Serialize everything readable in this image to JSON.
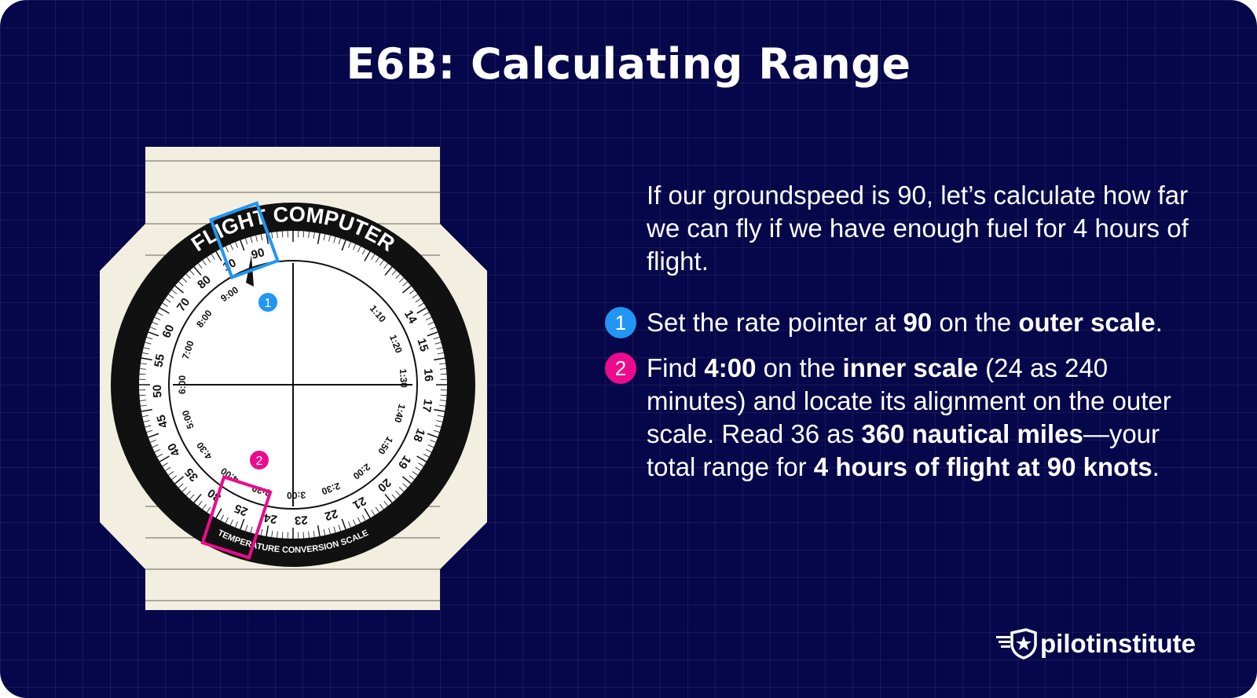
{
  "title": "E6B: Calculating Range",
  "intro": "If our groundspeed is 90, let’s calculate how far we can fly if we have enough fuel for 4 hours of flight.",
  "steps": [
    {
      "number": "1",
      "color": "#2196f3",
      "parts": [
        "Set the rate pointer at ",
        "90",
        " on the ",
        "outer scale",
        "."
      ]
    },
    {
      "number": "2",
      "color": "#ec0b8c",
      "parts": [
        "Find ",
        "4:00",
        " on the ",
        "inner scale",
        " (24 as 240 minutes) and locate its alignment on the outer scale. Read 36 as ",
        "360 nautical miles",
        "—your total range for ",
        "4 hours of flight at 90 knots",
        "."
      ]
    }
  ],
  "dial": {
    "top_label": "FLIGHT COMPUTER",
    "bottom_label": "TEMPERATURE CONVERSION SCALE",
    "outer_numbers": [
      "90",
      "10",
      "80",
      "70",
      "60",
      "55",
      "50",
      "45",
      "40",
      "35",
      "30",
      "25",
      "24",
      "23",
      "22",
      "21",
      "20",
      "19",
      "18",
      "17",
      "16",
      "15",
      "14"
    ],
    "inner_times": [
      "9:00",
      "8:00",
      "7:00",
      "6:00",
      "5:00",
      "4:30",
      "4:00",
      "3:30",
      "3:00",
      "2:30",
      "2:00",
      "1:50",
      "1:40",
      "1:30",
      "1:20",
      "1:10"
    ],
    "marker1_color": "#2196f3",
    "marker2_color": "#ec0b8c"
  },
  "logo": {
    "text": "pilotinstitute",
    "icon": "shield-star-wings-icon"
  }
}
